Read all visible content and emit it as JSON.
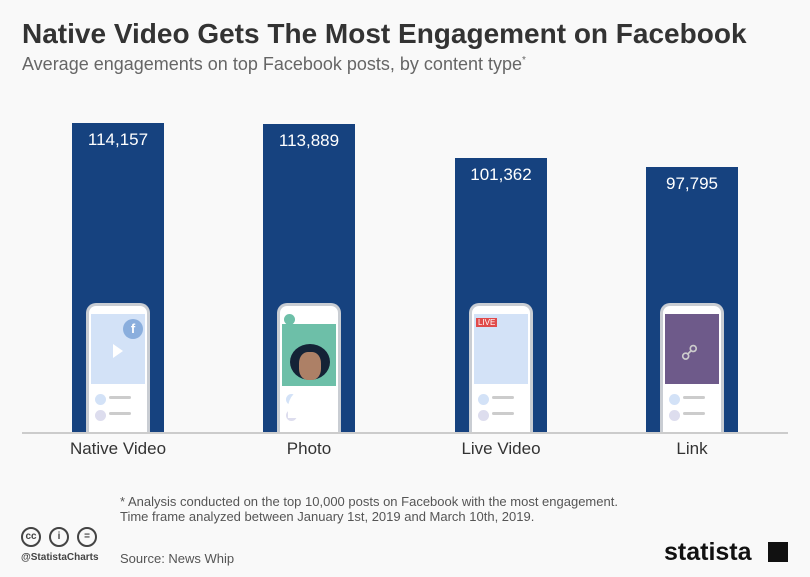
{
  "chart_data": {
    "type": "bar",
    "title": "Native Video Gets The Most Engagement on Facebook",
    "subtitle": "Average engagements on top Facebook posts, by content type",
    "subtitle_mark": "*",
    "categories": [
      "Native Video",
      "Photo",
      "Live Video",
      "Link"
    ],
    "values": [
      114157,
      113889,
      101362,
      97795
    ],
    "value_labels": [
      "114,157",
      "113,889",
      "101,362",
      "97,795"
    ],
    "bar_color": "#16427f",
    "grid": false,
    "ylim": [
      0,
      114157
    ]
  },
  "phones": {
    "live_badge": "LIVE"
  },
  "footer": {
    "note": "* Analysis conducted on the top 10,000 posts on Facebook with the most engagement. Time frame analyzed between January 1st, 2019 and March 10th, 2019.",
    "source": "Source: News Whip",
    "handle": "@StatistaCharts",
    "logo": "statista",
    "license_icons": [
      "cc",
      "by",
      "nd"
    ]
  }
}
